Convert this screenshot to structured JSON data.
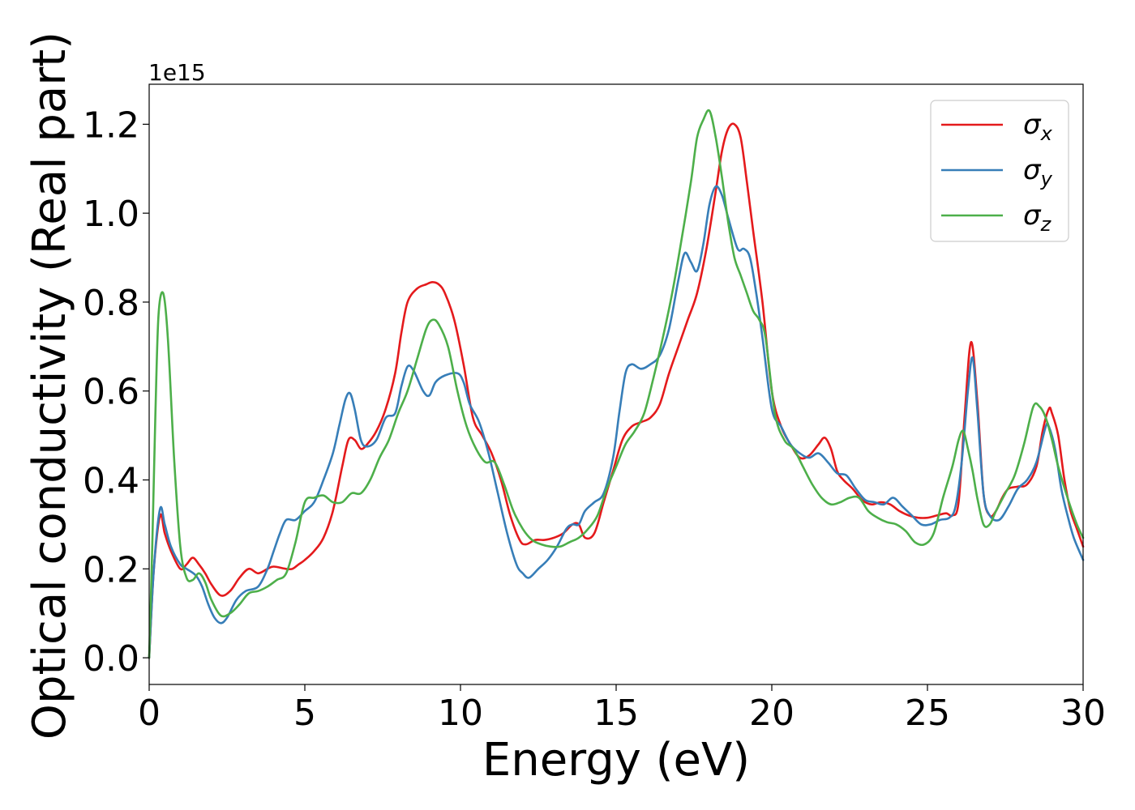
{
  "chart_data": {
    "type": "line",
    "title": "",
    "xlabel": "Energy (eV)",
    "ylabel": "Optical conductivity (Real part)",
    "y_offset_label": "1e15",
    "xlim": [
      0,
      30
    ],
    "ylim": [
      -0.06,
      1.29
    ],
    "xticks": [
      0,
      5,
      10,
      15,
      20,
      25,
      30
    ],
    "yticks": [
      0.0,
      0.2,
      0.4,
      0.6,
      0.8,
      1.0,
      1.2
    ],
    "grid": false,
    "legend_position": "top-right",
    "series": [
      {
        "name": "σx",
        "symbol": "σ",
        "subscript": "x",
        "color": "#e41a1c",
        "x": [
          0,
          0.15,
          0.35,
          0.5,
          0.7,
          1.0,
          1.2,
          1.4,
          1.6,
          1.8,
          2.0,
          2.3,
          2.6,
          2.9,
          3.2,
          3.5,
          3.8,
          4.0,
          4.4,
          4.6,
          4.8,
          5.0,
          5.3,
          5.6,
          5.9,
          6.2,
          6.4,
          6.6,
          6.8,
          7.0,
          7.3,
          7.6,
          7.9,
          8.1,
          8.3,
          8.6,
          8.9,
          9.1,
          9.3,
          9.5,
          9.8,
          10.1,
          10.4,
          10.7,
          11.0,
          11.3,
          11.6,
          11.9,
          12.1,
          12.4,
          12.7,
          13.0,
          13.3,
          13.6,
          13.8,
          14.0,
          14.3,
          14.6,
          14.9,
          15.2,
          15.5,
          15.8,
          16.1,
          16.4,
          16.7,
          17.0,
          17.3,
          17.6,
          17.9,
          18.2,
          18.4,
          18.6,
          18.8,
          19.0,
          19.2,
          19.4,
          19.7,
          20.0,
          20.3,
          20.6,
          20.9,
          21.2,
          21.5,
          21.7,
          21.9,
          22.1,
          22.3,
          22.6,
          22.9,
          23.2,
          23.5,
          23.8,
          24.1,
          24.4,
          24.7,
          25.0,
          25.3,
          25.6,
          25.8,
          26.0,
          26.2,
          26.4,
          26.6,
          26.8,
          27.0,
          27.2,
          27.4,
          27.6,
          27.9,
          28.2,
          28.5,
          28.7,
          28.9,
          29.0,
          29.2,
          29.4,
          29.6,
          29.8,
          30.0
        ],
        "values": [
          0.0,
          0.2,
          0.32,
          0.28,
          0.24,
          0.2,
          0.21,
          0.225,
          0.21,
          0.19,
          0.165,
          0.14,
          0.15,
          0.18,
          0.2,
          0.19,
          0.2,
          0.205,
          0.2,
          0.2,
          0.21,
          0.22,
          0.24,
          0.27,
          0.33,
          0.43,
          0.49,
          0.49,
          0.47,
          0.48,
          0.51,
          0.56,
          0.64,
          0.73,
          0.8,
          0.83,
          0.84,
          0.845,
          0.84,
          0.82,
          0.76,
          0.66,
          0.54,
          0.5,
          0.46,
          0.4,
          0.32,
          0.265,
          0.255,
          0.265,
          0.265,
          0.27,
          0.28,
          0.3,
          0.3,
          0.27,
          0.28,
          0.35,
          0.42,
          0.49,
          0.52,
          0.53,
          0.54,
          0.57,
          0.64,
          0.7,
          0.76,
          0.82,
          0.92,
          1.05,
          1.14,
          1.19,
          1.2,
          1.17,
          1.07,
          0.96,
          0.8,
          0.6,
          0.52,
          0.48,
          0.45,
          0.455,
          0.48,
          0.495,
          0.47,
          0.42,
          0.4,
          0.38,
          0.355,
          0.345,
          0.35,
          0.345,
          0.33,
          0.32,
          0.315,
          0.315,
          0.32,
          0.325,
          0.32,
          0.35,
          0.55,
          0.71,
          0.58,
          0.37,
          0.32,
          0.33,
          0.36,
          0.38,
          0.385,
          0.39,
          0.43,
          0.51,
          0.56,
          0.55,
          0.5,
          0.4,
          0.33,
          0.29,
          0.25
        ]
      },
      {
        "name": "σy",
        "symbol": "σ",
        "subscript": "y",
        "color": "#377eb8",
        "x": [
          0,
          0.15,
          0.35,
          0.5,
          0.7,
          1.0,
          1.2,
          1.5,
          1.7,
          1.9,
          2.1,
          2.3,
          2.5,
          2.8,
          3.1,
          3.5,
          3.8,
          4.0,
          4.2,
          4.4,
          4.7,
          5.0,
          5.3,
          5.6,
          5.9,
          6.1,
          6.3,
          6.45,
          6.6,
          6.8,
          7.0,
          7.3,
          7.6,
          7.9,
          8.1,
          8.3,
          8.5,
          8.8,
          9.0,
          9.2,
          9.5,
          9.9,
          10.1,
          10.3,
          10.6,
          10.9,
          11.2,
          11.5,
          11.8,
          12.0,
          12.2,
          12.5,
          12.8,
          13.1,
          13.4,
          13.6,
          13.8,
          14.0,
          14.3,
          14.6,
          14.9,
          15.1,
          15.3,
          15.5,
          15.8,
          16.1,
          16.4,
          16.7,
          17.0,
          17.2,
          17.4,
          17.6,
          17.8,
          18.0,
          18.2,
          18.4,
          18.6,
          18.9,
          19.1,
          19.3,
          19.5,
          19.7,
          20.0,
          20.3,
          20.6,
          20.9,
          21.2,
          21.5,
          21.8,
          22.1,
          22.4,
          22.7,
          23.0,
          23.3,
          23.6,
          23.9,
          24.2,
          24.5,
          24.8,
          25.1,
          25.4,
          25.7,
          25.9,
          26.1,
          26.3,
          26.45,
          26.6,
          26.8,
          27.0,
          27.3,
          27.6,
          27.9,
          28.2,
          28.5,
          28.8,
          28.9,
          29.1,
          29.3,
          29.5,
          29.7,
          30.0
        ],
        "values": [
          0.0,
          0.2,
          0.335,
          0.3,
          0.25,
          0.21,
          0.2,
          0.185,
          0.16,
          0.12,
          0.09,
          0.078,
          0.09,
          0.13,
          0.15,
          0.16,
          0.2,
          0.24,
          0.28,
          0.31,
          0.31,
          0.33,
          0.35,
          0.4,
          0.46,
          0.52,
          0.58,
          0.595,
          0.56,
          0.49,
          0.475,
          0.49,
          0.54,
          0.55,
          0.61,
          0.655,
          0.645,
          0.6,
          0.59,
          0.62,
          0.635,
          0.64,
          0.62,
          0.57,
          0.53,
          0.46,
          0.37,
          0.28,
          0.21,
          0.19,
          0.18,
          0.2,
          0.22,
          0.25,
          0.29,
          0.3,
          0.3,
          0.33,
          0.35,
          0.37,
          0.45,
          0.55,
          0.64,
          0.66,
          0.65,
          0.66,
          0.68,
          0.74,
          0.85,
          0.91,
          0.89,
          0.87,
          0.93,
          1.02,
          1.06,
          1.04,
          0.99,
          0.92,
          0.92,
          0.9,
          0.82,
          0.72,
          0.56,
          0.52,
          0.48,
          0.46,
          0.45,
          0.46,
          0.44,
          0.415,
          0.41,
          0.38,
          0.355,
          0.35,
          0.345,
          0.36,
          0.34,
          0.32,
          0.3,
          0.3,
          0.31,
          0.315,
          0.34,
          0.44,
          0.6,
          0.675,
          0.56,
          0.37,
          0.32,
          0.31,
          0.34,
          0.38,
          0.4,
          0.44,
          0.52,
          0.52,
          0.47,
          0.38,
          0.32,
          0.27,
          0.22
        ]
      },
      {
        "name": "σz",
        "symbol": "σ",
        "subscript": "z",
        "color": "#4daf4a",
        "x": [
          0,
          0.1,
          0.2,
          0.3,
          0.45,
          0.6,
          0.8,
          1.0,
          1.2,
          1.4,
          1.6,
          1.8,
          2.0,
          2.3,
          2.6,
          2.9,
          3.2,
          3.5,
          3.8,
          4.1,
          4.4,
          4.7,
          5.0,
          5.3,
          5.6,
          5.9,
          6.2,
          6.5,
          6.8,
          7.1,
          7.4,
          7.7,
          8.0,
          8.3,
          8.6,
          8.9,
          9.1,
          9.3,
          9.6,
          9.9,
          10.2,
          10.5,
          10.8,
          11.1,
          11.4,
          11.7,
          12.0,
          12.3,
          12.6,
          12.9,
          13.2,
          13.5,
          13.8,
          14.1,
          14.4,
          14.7,
          15.0,
          15.3,
          15.6,
          15.9,
          16.2,
          16.5,
          16.8,
          17.1,
          17.4,
          17.6,
          17.8,
          18.0,
          18.2,
          18.4,
          18.6,
          18.8,
          19.0,
          19.2,
          19.4,
          19.6,
          19.8,
          20.1,
          20.4,
          20.7,
          21.0,
          21.3,
          21.6,
          21.9,
          22.2,
          22.5,
          22.8,
          23.1,
          23.4,
          23.7,
          24.0,
          24.3,
          24.6,
          24.9,
          25.2,
          25.5,
          25.8,
          26.0,
          26.15,
          26.3,
          26.45,
          26.6,
          26.8,
          27.0,
          27.2,
          27.5,
          27.8,
          28.1,
          28.4,
          28.6,
          28.8,
          29.0,
          29.2,
          29.5,
          29.8,
          30.0
        ],
        "values": [
          0.0,
          0.25,
          0.55,
          0.77,
          0.82,
          0.72,
          0.45,
          0.25,
          0.18,
          0.175,
          0.19,
          0.17,
          0.13,
          0.095,
          0.1,
          0.12,
          0.145,
          0.15,
          0.16,
          0.175,
          0.19,
          0.26,
          0.35,
          0.36,
          0.365,
          0.35,
          0.35,
          0.37,
          0.37,
          0.4,
          0.45,
          0.49,
          0.55,
          0.6,
          0.67,
          0.74,
          0.76,
          0.75,
          0.7,
          0.6,
          0.52,
          0.47,
          0.44,
          0.44,
          0.39,
          0.33,
          0.29,
          0.265,
          0.255,
          0.25,
          0.25,
          0.26,
          0.27,
          0.29,
          0.32,
          0.38,
          0.43,
          0.48,
          0.51,
          0.55,
          0.63,
          0.72,
          0.82,
          0.94,
          1.07,
          1.17,
          1.21,
          1.23,
          1.17,
          1.08,
          0.98,
          0.9,
          0.86,
          0.82,
          0.78,
          0.76,
          0.72,
          0.55,
          0.49,
          0.47,
          0.43,
          0.39,
          0.36,
          0.345,
          0.35,
          0.36,
          0.36,
          0.33,
          0.315,
          0.305,
          0.3,
          0.285,
          0.26,
          0.255,
          0.28,
          0.36,
          0.43,
          0.49,
          0.51,
          0.47,
          0.42,
          0.36,
          0.3,
          0.3,
          0.33,
          0.37,
          0.41,
          0.48,
          0.565,
          0.565,
          0.54,
          0.49,
          0.43,
          0.36,
          0.3,
          0.27
        ]
      }
    ]
  }
}
